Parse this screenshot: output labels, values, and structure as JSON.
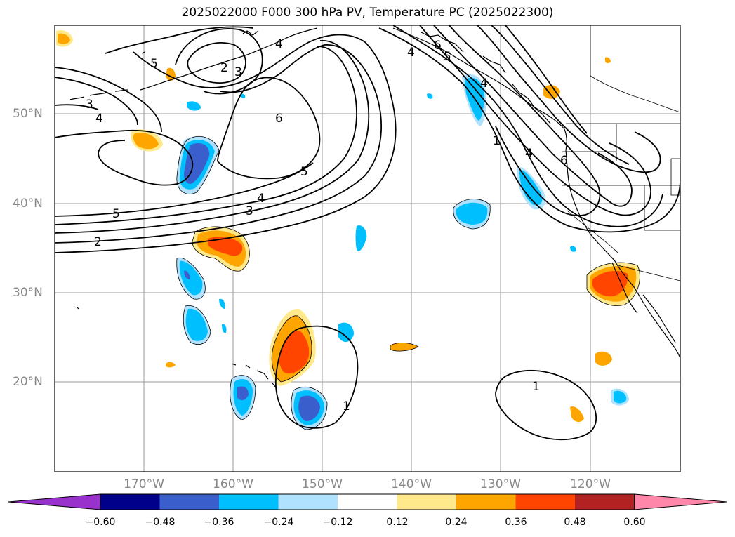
{
  "title": "2025022000 F000 300 hPa PV, Temperature PC (2025022300)",
  "axes": {
    "lat_labels": [
      "50°N",
      "40°N",
      "30°N",
      "20°N"
    ],
    "lon_labels": [
      "170°W",
      "160°W",
      "150°W",
      "140°W",
      "130°W",
      "120°W"
    ],
    "gridlines": true
  },
  "pv_contour_labels": [
    "5",
    "2",
    "3",
    "4",
    "3",
    "4",
    "6",
    "5",
    "4",
    "3",
    "5",
    "2",
    "4",
    "6",
    "5",
    "4",
    "1",
    "4",
    "6",
    "1",
    "1"
  ],
  "colorbar": {
    "ticks": [
      "−0.60",
      "−0.48",
      "−0.36",
      "−0.24",
      "−0.12",
      "0.12",
      "0.24",
      "0.36",
      "0.48",
      "0.60"
    ],
    "colors": [
      "#9932cc",
      "#00008b",
      "#3a5fcd",
      "#00bfff",
      "#b0e2ff",
      "#ffffff",
      "#ffe98a",
      "#ffa500",
      "#ff4500",
      "#b22222",
      "#ff88aa"
    ],
    "extend": "both"
  }
}
